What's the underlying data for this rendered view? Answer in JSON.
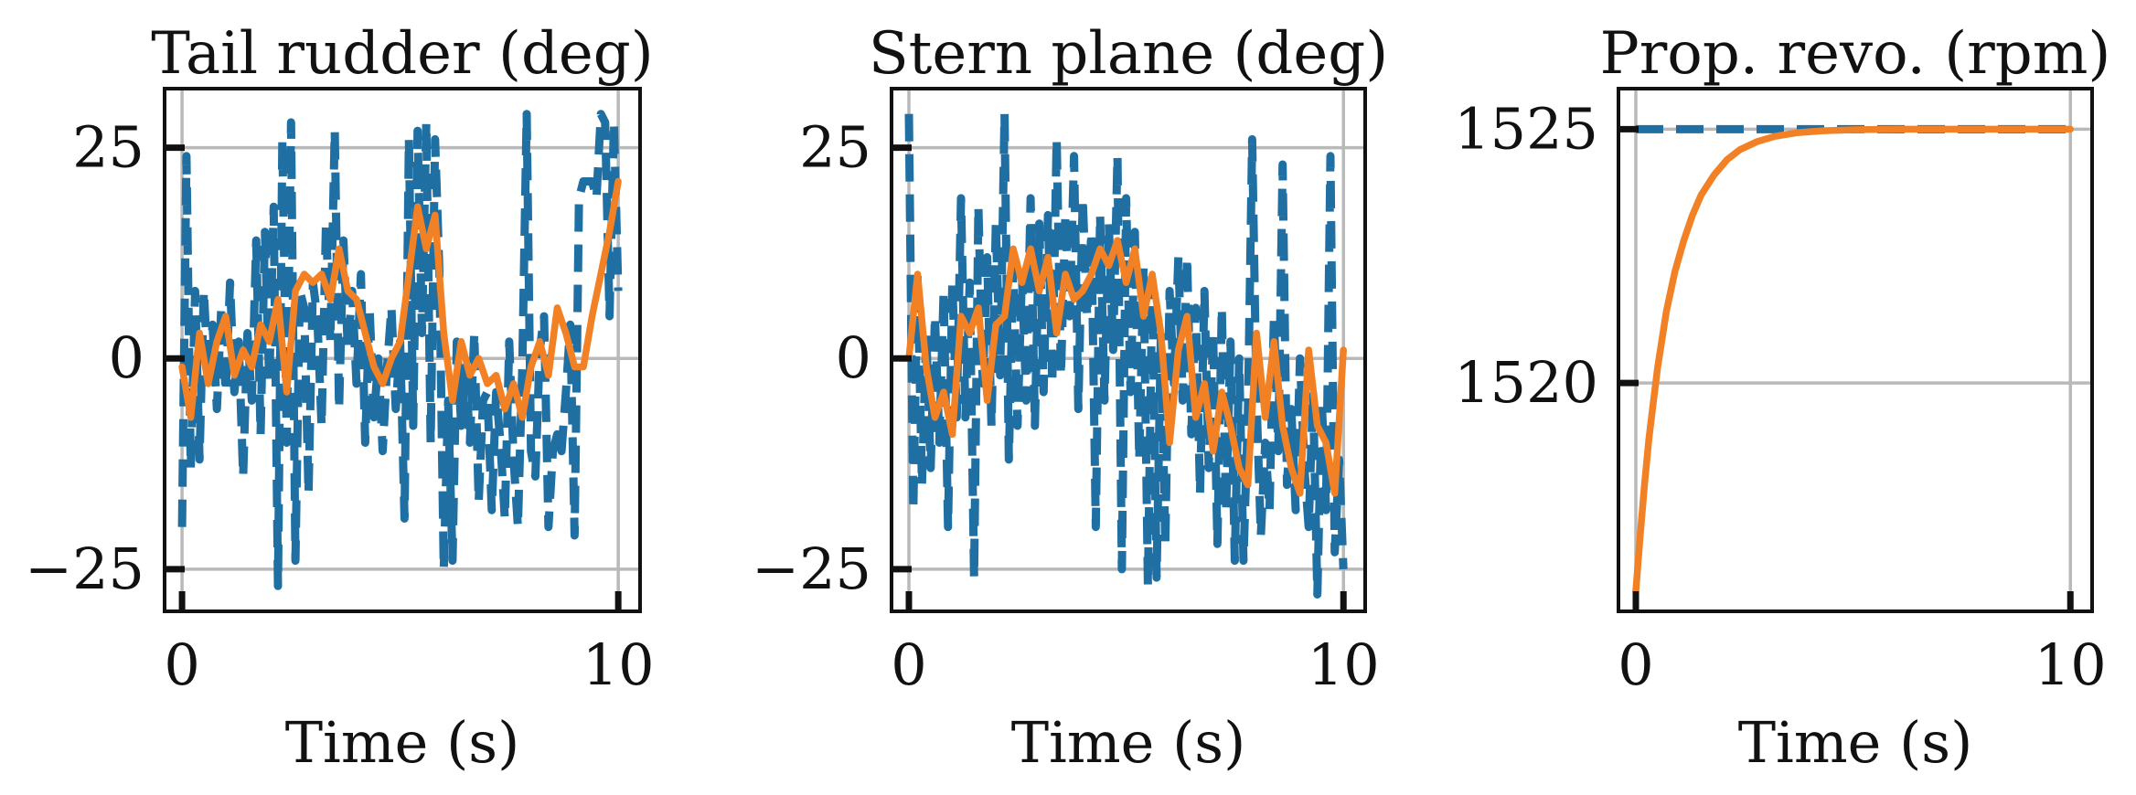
{
  "colors": {
    "command": "#1f6fa3",
    "actual": "#f28024",
    "grid": "#b9b9b9"
  },
  "chart_data": [
    {
      "type": "line",
      "title": "Tail rudder (deg)",
      "xlabel": "Time (s)",
      "ylabel": "",
      "xlim": [
        -0.4,
        10.5
      ],
      "ylim": [
        -30,
        32
      ],
      "xticks": [
        0,
        10
      ],
      "xtick_labels": [
        "0",
        "10"
      ],
      "yticks": [
        -25,
        0,
        25
      ],
      "ytick_labels": [
        "−25",
        "0",
        "25"
      ],
      "grid": true,
      "series": [
        {
          "style": "dashed",
          "x": [
            0.0,
            0.1,
            0.2,
            0.3,
            0.4,
            0.5,
            0.6,
            0.7,
            0.8,
            0.9,
            1.0,
            1.1,
            1.2,
            1.3,
            1.4,
            1.5,
            1.6,
            1.7,
            1.8,
            1.9,
            2.0,
            2.1,
            2.2,
            2.3,
            2.4,
            2.5,
            2.6,
            2.7,
            2.8,
            2.9,
            3.0,
            3.1,
            3.2,
            3.3,
            3.4,
            3.5,
            3.6,
            3.7,
            3.8,
            3.9,
            4.0,
            4.1,
            4.2,
            4.3,
            4.4,
            4.5,
            4.6,
            4.7,
            4.8,
            4.9,
            5.0,
            5.1,
            5.2,
            5.3,
            5.4,
            5.5,
            5.6,
            5.7,
            5.8,
            5.9,
            6.0,
            6.1,
            6.2,
            6.3,
            6.4,
            6.5,
            6.6,
            6.7,
            6.8,
            6.9,
            7.0,
            7.1,
            7.2,
            7.3,
            7.4,
            7.5,
            7.6,
            7.7,
            7.8,
            7.9,
            8.0,
            8.1,
            8.2,
            8.3,
            8.4,
            8.5,
            8.6,
            8.7,
            8.8,
            8.9,
            9.0,
            9.1,
            9.2,
            9.3,
            9.4,
            9.5,
            9.6,
            9.7,
            9.8,
            9.9,
            10.0
          ],
          "y": [
            -20,
            24,
            -13,
            8,
            -12,
            8,
            -2,
            4,
            -6,
            6,
            -4,
            9,
            -4,
            2,
            -14,
            3,
            -5,
            14,
            -9,
            15,
            -3,
            18,
            -27,
            26,
            -10,
            28,
            -24,
            8,
            6,
            -16,
            9,
            5,
            -8,
            16,
            2,
            27,
            -6,
            14,
            1,
            8,
            -3,
            10,
            -10,
            6,
            -7,
            0,
            -11,
            -1,
            6,
            -6,
            2,
            -19,
            26,
            -8,
            27,
            3,
            28,
            -10,
            26,
            10,
            -25,
            -5,
            -24,
            2,
            -8,
            -1,
            -10,
            3,
            -17,
            -5,
            -4,
            -18,
            -4,
            -10,
            -19,
            2,
            -12,
            -20,
            -1,
            29,
            -11,
            -14,
            1,
            5,
            -20,
            -11,
            -9,
            -11,
            -4,
            4,
            -21,
            19,
            21,
            21,
            21,
            19,
            29,
            28,
            5,
            28,
            8
          ]
        },
        {
          "style": "solid",
          "x": [
            0.0,
            0.2,
            0.4,
            0.6,
            0.8,
            1.0,
            1.2,
            1.4,
            1.6,
            1.8,
            2.0,
            2.2,
            2.4,
            2.6,
            2.8,
            3.0,
            3.2,
            3.4,
            3.6,
            3.8,
            4.0,
            4.2,
            4.4,
            4.6,
            4.8,
            5.0,
            5.2,
            5.4,
            5.6,
            5.8,
            6.0,
            6.2,
            6.4,
            6.6,
            6.8,
            7.0,
            7.2,
            7.4,
            7.6,
            7.8,
            8.0,
            8.2,
            8.4,
            8.6,
            8.8,
            9.0,
            9.2,
            9.4,
            9.6,
            9.8,
            10.0
          ],
          "y": [
            -1,
            -7,
            3,
            -3,
            2,
            5,
            -2,
            1,
            -1,
            4,
            2,
            7,
            -4,
            8,
            10,
            9,
            10,
            7,
            13,
            8,
            7,
            3,
            -1,
            -3,
            0,
            2,
            10,
            18,
            13,
            17,
            3,
            -5,
            2,
            -2,
            0,
            -3,
            -2,
            -6,
            -3,
            -7,
            -1,
            2,
            -2,
            6,
            3,
            -1,
            -1,
            5,
            10,
            15,
            21
          ]
        }
      ]
    },
    {
      "type": "line",
      "title": "Stern plane (deg)",
      "xlabel": "Time (s)",
      "ylabel": "",
      "xlim": [
        -0.4,
        10.5
      ],
      "ylim": [
        -30,
        32
      ],
      "xticks": [
        0,
        10
      ],
      "xtick_labels": [
        "0",
        "10"
      ],
      "yticks": [
        -25,
        0,
        25
      ],
      "ytick_labels": [
        "−25",
        "0",
        "25"
      ],
      "grid": true,
      "series": [
        {
          "style": "dashed",
          "x": [
            0.0,
            0.1,
            0.2,
            0.3,
            0.4,
            0.5,
            0.6,
            0.7,
            0.8,
            0.9,
            1.0,
            1.1,
            1.2,
            1.3,
            1.4,
            1.5,
            1.6,
            1.7,
            1.8,
            1.9,
            2.0,
            2.1,
            2.2,
            2.3,
            2.4,
            2.5,
            2.6,
            2.7,
            2.8,
            2.9,
            3.0,
            3.1,
            3.2,
            3.3,
            3.4,
            3.5,
            3.6,
            3.7,
            3.8,
            3.9,
            4.0,
            4.1,
            4.2,
            4.3,
            4.4,
            4.5,
            4.6,
            4.7,
            4.8,
            4.9,
            5.0,
            5.1,
            5.2,
            5.3,
            5.4,
            5.5,
            5.6,
            5.7,
            5.8,
            5.9,
            6.0,
            6.1,
            6.2,
            6.3,
            6.4,
            6.5,
            6.6,
            6.7,
            6.8,
            6.9,
            7.0,
            7.1,
            7.2,
            7.3,
            7.4,
            7.5,
            7.6,
            7.7,
            7.8,
            7.9,
            8.0,
            8.1,
            8.2,
            8.3,
            8.4,
            8.5,
            8.6,
            8.7,
            8.8,
            8.9,
            9.0,
            9.1,
            9.2,
            9.3,
            9.4,
            9.5,
            9.6,
            9.7,
            9.8,
            9.9,
            10.0
          ],
          "y": [
            29,
            -18,
            10,
            -15,
            3,
            -13,
            5,
            -10,
            8,
            -20,
            9,
            -7,
            19,
            -7,
            9,
            -26,
            18,
            -3,
            12,
            -8,
            16,
            -2,
            29,
            -12,
            11,
            -8,
            10,
            -5,
            19,
            -8,
            16,
            -4,
            17,
            -3,
            26,
            -2,
            17,
            5,
            24,
            -6,
            19,
            5,
            15,
            -20,
            17,
            -5,
            16,
            1,
            24,
            -25,
            19,
            -4,
            15,
            -12,
            11,
            -27,
            9,
            -26,
            3,
            -22,
            8,
            -3,
            12,
            -5,
            12,
            -9,
            6,
            -16,
            8,
            -13,
            3,
            -22,
            6,
            -18,
            2,
            -24,
            0,
            -24,
            -7,
            26,
            -5,
            -21,
            -10,
            -18,
            5,
            -11,
            23,
            -15,
            -6,
            -18,
            0,
            -13,
            -20,
            -4,
            -28,
            -5,
            -18,
            24,
            -23,
            -12,
            -25
          ]
        },
        {
          "style": "solid",
          "x": [
            0.0,
            0.2,
            0.4,
            0.6,
            0.8,
            1.0,
            1.2,
            1.4,
            1.6,
            1.8,
            2.0,
            2.2,
            2.4,
            2.6,
            2.8,
            3.0,
            3.2,
            3.4,
            3.6,
            3.8,
            4.0,
            4.2,
            4.4,
            4.6,
            4.8,
            5.0,
            5.2,
            5.4,
            5.6,
            5.8,
            6.0,
            6.2,
            6.4,
            6.6,
            6.8,
            7.0,
            7.2,
            7.4,
            7.6,
            7.8,
            8.0,
            8.2,
            8.4,
            8.6,
            8.8,
            9.0,
            9.2,
            9.4,
            9.6,
            9.8,
            10.0
          ],
          "y": [
            0,
            10,
            -1,
            -7,
            -4,
            -9,
            5,
            3,
            6,
            -5,
            4,
            5,
            13,
            9,
            13,
            8,
            12,
            3,
            10,
            7,
            8,
            10,
            13,
            11,
            14,
            9,
            13,
            5,
            10,
            3,
            -10,
            1,
            5,
            -7,
            -3,
            -11,
            -4,
            -8,
            -13,
            -15,
            3,
            -7,
            2,
            -8,
            -13,
            -16,
            1,
            -8,
            -10,
            -16,
            1
          ]
        }
      ]
    },
    {
      "type": "line",
      "title": "Prop. revo. (rpm)",
      "xlabel": "Time (s)",
      "ylabel": "",
      "xlim": [
        -0.4,
        10.5
      ],
      "ylim": [
        1515.5,
        1525.8
      ],
      "xticks": [
        0,
        10
      ],
      "xtick_labels": [
        "0",
        "10"
      ],
      "yticks": [
        1520,
        1525
      ],
      "ytick_labels": [
        "1520",
        "1525"
      ],
      "grid": true,
      "series": [
        {
          "style": "dashed",
          "x": [
            0,
            10
          ],
          "y": [
            1525,
            1525
          ]
        },
        {
          "style": "solid",
          "x": [
            0.0,
            0.1,
            0.2,
            0.3,
            0.4,
            0.5,
            0.7,
            0.9,
            1.1,
            1.3,
            1.5,
            1.8,
            2.1,
            2.4,
            2.8,
            3.2,
            3.7,
            4.3,
            5.0,
            6.0,
            7.0,
            8.0,
            9.0,
            10.0
          ],
          "y": [
            1515.9,
            1517.0,
            1518.0,
            1518.9,
            1519.6,
            1520.3,
            1521.4,
            1522.2,
            1522.8,
            1523.3,
            1523.7,
            1524.1,
            1524.4,
            1524.6,
            1524.76,
            1524.86,
            1524.93,
            1524.97,
            1524.99,
            1525.0,
            1525.0,
            1525.0,
            1525.0,
            1525.0
          ]
        }
      ]
    }
  ]
}
